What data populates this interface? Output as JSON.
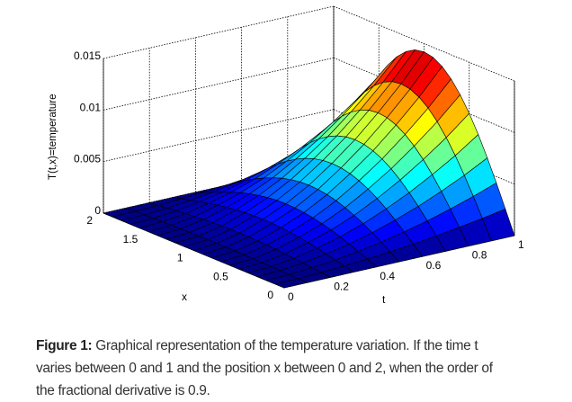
{
  "chart_data": {
    "type": "surface",
    "title": "",
    "xlabel": "t",
    "ylabel": "x",
    "zlabel": "T(t,x)=temperature",
    "t_range": [
      0,
      1
    ],
    "x_range": [
      0,
      2
    ],
    "z_range": [
      0,
      0.015
    ],
    "t_ticks": [
      "0",
      "0.2",
      "0.4",
      "0.6",
      "0.8",
      "1"
    ],
    "t_tick_values": [
      0,
      0.2,
      0.4,
      0.6,
      0.8,
      1
    ],
    "x_ticks": [
      "0",
      "0.5",
      "1",
      "1.5",
      "2"
    ],
    "x_tick_values": [
      0,
      0.5,
      1,
      1.5,
      2
    ],
    "z_ticks": [
      "0",
      "0.005",
      "0.01",
      "0.015"
    ],
    "z_tick_values": [
      0,
      0.005,
      0.01,
      0.015
    ],
    "grid": true,
    "colormap": "jet",
    "t_samples": [
      0,
      0.1,
      0.2,
      0.3,
      0.4,
      0.5,
      0.6,
      0.7,
      0.8,
      0.9,
      1.0
    ],
    "peak_profile_over_t": [
      0,
      0.00018,
      0.00067,
      0.0015,
      0.0025,
      0.0038,
      0.0054,
      0.0072,
      0.0093,
      0.0116,
      0.0142
    ],
    "x_samples": [
      0,
      0.1,
      0.2,
      0.3,
      0.4,
      0.5,
      0.6,
      0.7,
      0.8,
      0.9,
      1.0,
      1.1,
      1.2,
      1.3,
      1.4,
      1.5,
      1.6,
      1.7,
      1.8,
      1.9,
      2.0
    ],
    "shape_over_x": [
      0,
      0.156,
      0.309,
      0.454,
      0.588,
      0.707,
      0.809,
      0.891,
      0.951,
      0.988,
      1,
      0.988,
      0.951,
      0.891,
      0.809,
      0.707,
      0.588,
      0.454,
      0.309,
      0.156,
      0
    ]
  },
  "caption": {
    "label": "Figure 1:",
    "line1": " Graphical representation of the temperature variation. If the time t",
    "line2": "varies between 0 and 1 and the position x between 0 and 2, when the order of",
    "line3": "the fractional derivative is 0.9."
  }
}
